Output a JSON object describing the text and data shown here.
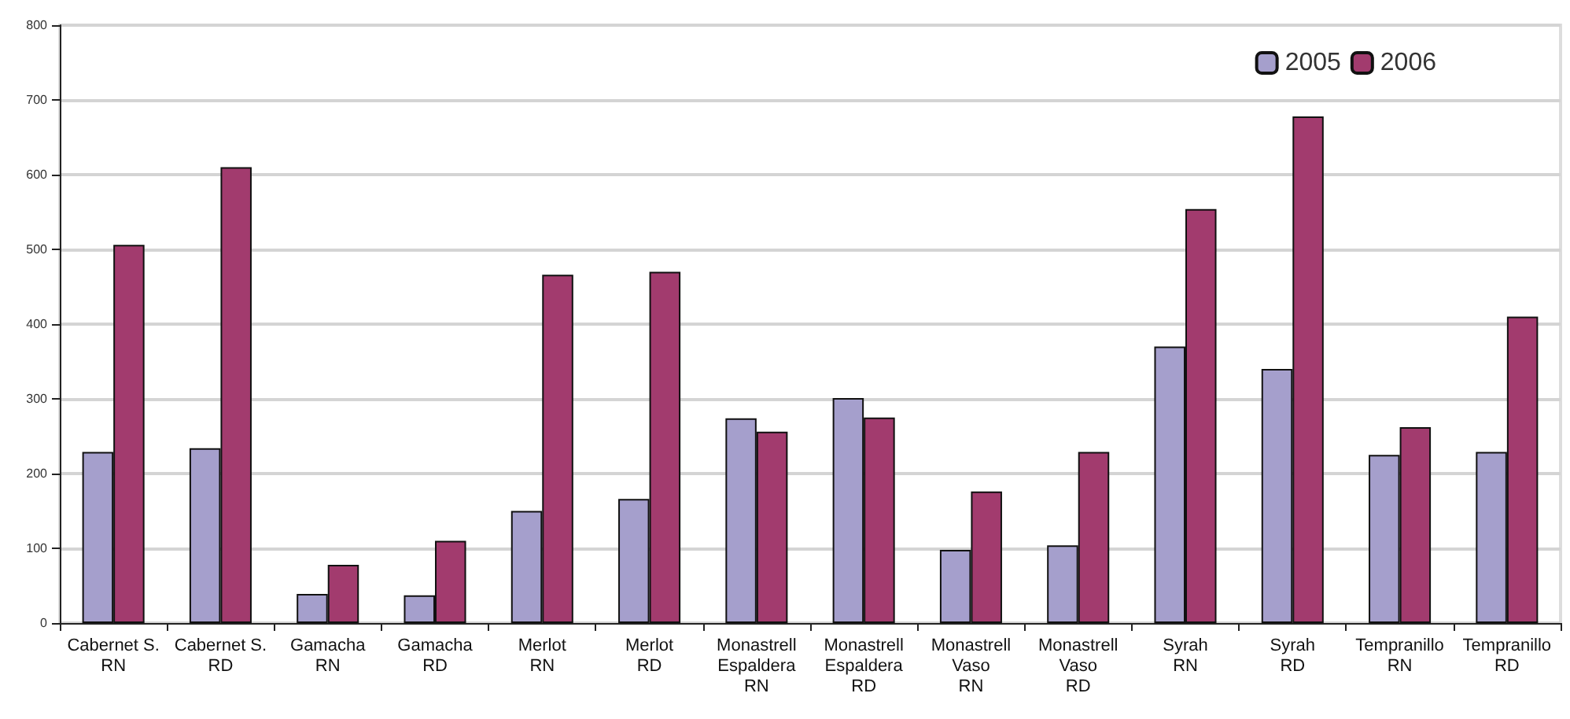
{
  "chart_data": {
    "type": "bar",
    "categories": [
      "Cabernet S.\nRN",
      "Cabernet S.\nRD",
      "Gamacha\nRN",
      "Gamacha\nRD",
      "Merlot\nRN",
      "Merlot\nRD",
      "Monastrell\nEspaldera\nRN",
      "Monastrell\nEspaldera\nRD",
      "Monastrell\nVaso\nRN",
      "Monastrell\nVaso\nRD",
      "Syrah\nRN",
      "Syrah\nRD",
      "Tempranillo\nRN",
      "Tempranillo\nRD"
    ],
    "series": [
      {
        "name": "2005",
        "color": "#a59fcc",
        "values": [
          229,
          234,
          39,
          37,
          150,
          166,
          274,
          301,
          98,
          104,
          370,
          340,
          225,
          229
        ]
      },
      {
        "name": "2006",
        "color": "#a23b6e",
        "values": [
          506,
          610,
          78,
          110,
          466,
          470,
          256,
          275,
          176,
          229,
          554,
          678,
          262,
          410
        ]
      }
    ],
    "ylim": [
      0,
      800
    ],
    "yticks": [
      0,
      100,
      200,
      300,
      400,
      500,
      600,
      700,
      800
    ],
    "grid": "y",
    "legend": "top right"
  }
}
